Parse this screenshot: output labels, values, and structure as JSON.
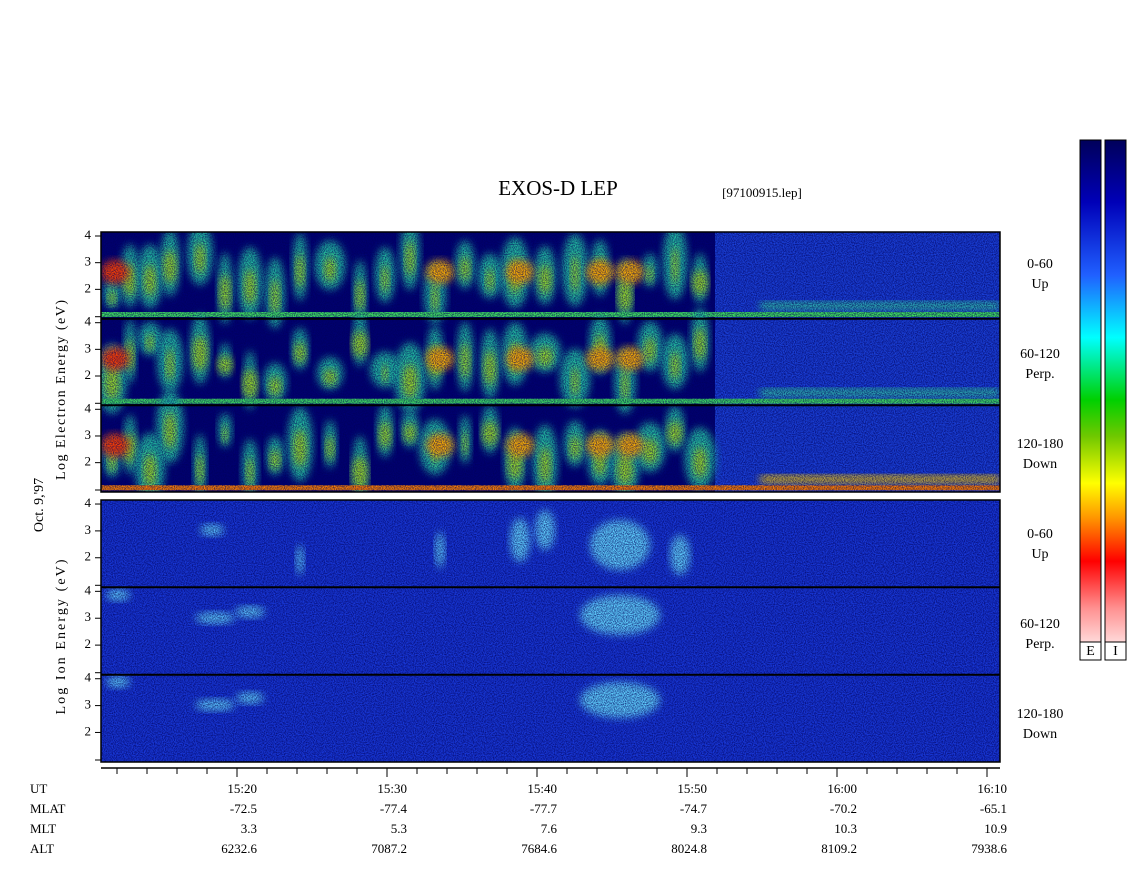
{
  "header": {
    "title": "EXOS-D LEP",
    "file": "[97100915.lep]"
  },
  "date": "Oct. 9,'97",
  "panels": [
    {
      "axis_label": "Log Electron Energy (eV)",
      "bands": [
        {
          "angle": "0-60",
          "direction": "Up"
        },
        {
          "angle": "60-120",
          "direction": "Perp."
        },
        {
          "angle": "120-180",
          "direction": "Down"
        }
      ]
    },
    {
      "axis_label": "Log Ion Energy (eV)",
      "bands": [
        {
          "angle": "0-60",
          "direction": "Up"
        },
        {
          "angle": "60-120",
          "direction": "Perp."
        },
        {
          "angle": "120-180",
          "direction": "Down"
        }
      ]
    }
  ],
  "energy_axis": {
    "ylim": [
      0.9,
      4.15
    ],
    "yticks": [
      2,
      3,
      4
    ]
  },
  "colorbar": {
    "labels": [
      "E",
      "I"
    ]
  },
  "ephemeris": {
    "row_labels": [
      "UT",
      "MLAT",
      "MLT",
      "ALT"
    ],
    "columns": [
      [
        "15:20",
        -72.5,
        3.3,
        6232.6
      ],
      [
        "15:30",
        -77.4,
        5.3,
        7087.2
      ],
      [
        "15:40",
        -77.7,
        7.6,
        7684.6
      ],
      [
        "15:50",
        -74.7,
        9.3,
        8024.8
      ],
      [
        "16:00",
        -70.2,
        10.3,
        8109.2
      ],
      [
        "16:10",
        -65.1,
        10.9,
        7938.6
      ]
    ]
  }
}
